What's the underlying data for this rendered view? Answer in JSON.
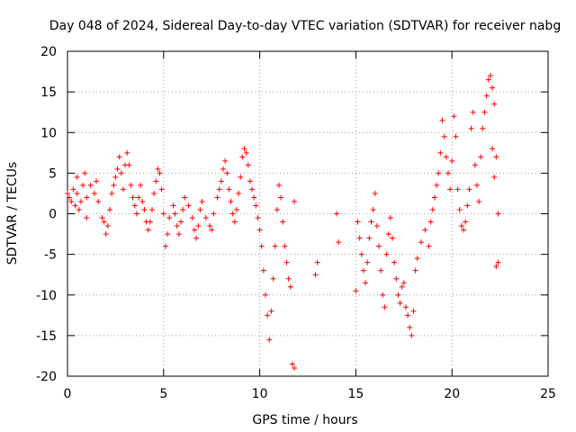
{
  "chart_data": {
    "type": "scatter",
    "title": "Day 048 of 2024, Sidereal Day-to-day VTEC variation (SDTVAR) for receiver nabg",
    "xlabel": "GPS time / hours",
    "ylabel": "SDTVAR / TECUs",
    "xlim": [
      0,
      25
    ],
    "ylim": [
      -20,
      20
    ],
    "x_ticks": [
      0,
      5,
      10,
      15,
      20,
      25
    ],
    "x_tick_labels": [
      "0",
      "5",
      "10",
      "15",
      "20",
      "25"
    ],
    "y_ticks": [
      -20,
      -15,
      -10,
      -5,
      0,
      5,
      10,
      15,
      20
    ],
    "y_tick_labels": [
      "-20",
      "-15",
      "-10",
      "-5",
      "0",
      "5",
      "10",
      "15",
      "20"
    ],
    "grid": true,
    "marker": "+",
    "series": [
      {
        "name": "SDTVAR",
        "color": "#ff0000",
        "points": [
          [
            0.0,
            2.5
          ],
          [
            0.1,
            2.0
          ],
          [
            0.2,
            1.5
          ],
          [
            0.3,
            3.0
          ],
          [
            0.4,
            1.0
          ],
          [
            0.5,
            4.5
          ],
          [
            0.5,
            2.5
          ],
          [
            0.6,
            0.5
          ],
          [
            0.7,
            1.5
          ],
          [
            0.8,
            3.5
          ],
          [
            0.9,
            5.0
          ],
          [
            1.0,
            -0.5
          ],
          [
            1.0,
            2.0
          ],
          [
            1.2,
            3.5
          ],
          [
            1.4,
            2.5
          ],
          [
            1.5,
            4.0
          ],
          [
            1.6,
            1.5
          ],
          [
            1.8,
            -0.5
          ],
          [
            1.9,
            -1.0
          ],
          [
            2.0,
            -2.5
          ],
          [
            2.1,
            -1.5
          ],
          [
            2.2,
            0.5
          ],
          [
            2.3,
            2.5
          ],
          [
            2.4,
            3.5
          ],
          [
            2.5,
            4.5
          ],
          [
            2.6,
            5.5
          ],
          [
            2.7,
            7.0
          ],
          [
            2.8,
            5.0
          ],
          [
            2.9,
            3.0
          ],
          [
            3.0,
            6.0
          ],
          [
            3.1,
            7.5
          ],
          [
            3.2,
            6.0
          ],
          [
            3.3,
            3.5
          ],
          [
            3.4,
            2.0
          ],
          [
            3.5,
            1.0
          ],
          [
            3.6,
            0.0
          ],
          [
            3.7,
            2.0
          ],
          [
            3.8,
            3.5
          ],
          [
            3.9,
            1.5
          ],
          [
            4.0,
            0.5
          ],
          [
            4.1,
            -1.0
          ],
          [
            4.2,
            -2.0
          ],
          [
            4.3,
            -1.0
          ],
          [
            4.4,
            0.5
          ],
          [
            4.5,
            2.5
          ],
          [
            4.6,
            4.0
          ],
          [
            4.7,
            5.5
          ],
          [
            4.8,
            5.0
          ],
          [
            4.9,
            3.0
          ],
          [
            5.0,
            0.0
          ],
          [
            5.1,
            -4.0
          ],
          [
            5.2,
            -2.5
          ],
          [
            5.3,
            -0.5
          ],
          [
            5.5,
            1.0
          ],
          [
            5.6,
            0.0
          ],
          [
            5.7,
            -1.5
          ],
          [
            5.8,
            -2.5
          ],
          [
            5.9,
            -1.0
          ],
          [
            6.0,
            0.5
          ],
          [
            6.1,
            2.0
          ],
          [
            6.3,
            1.0
          ],
          [
            6.5,
            -0.5
          ],
          [
            6.6,
            -2.0
          ],
          [
            6.7,
            -3.0
          ],
          [
            6.8,
            -1.5
          ],
          [
            6.9,
            0.5
          ],
          [
            7.0,
            1.5
          ],
          [
            7.2,
            -0.5
          ],
          [
            7.4,
            -1.5
          ],
          [
            7.5,
            -2.0
          ],
          [
            7.6,
            0.0
          ],
          [
            7.8,
            2.0
          ],
          [
            7.9,
            3.0
          ],
          [
            8.0,
            4.0
          ],
          [
            8.1,
            5.5
          ],
          [
            8.2,
            6.5
          ],
          [
            8.3,
            5.0
          ],
          [
            8.4,
            3.0
          ],
          [
            8.5,
            1.5
          ],
          [
            8.6,
            0.0
          ],
          [
            8.7,
            -1.0
          ],
          [
            8.8,
            0.5
          ],
          [
            8.9,
            2.5
          ],
          [
            9.0,
            4.5
          ],
          [
            9.1,
            7.0
          ],
          [
            9.2,
            8.0
          ],
          [
            9.3,
            7.5
          ],
          [
            9.4,
            6.0
          ],
          [
            9.5,
            4.0
          ],
          [
            9.6,
            3.0
          ],
          [
            9.7,
            2.0
          ],
          [
            9.8,
            1.0
          ],
          [
            9.9,
            -0.5
          ],
          [
            10.0,
            -2.0
          ],
          [
            10.1,
            -4.0
          ],
          [
            10.2,
            -7.0
          ],
          [
            10.3,
            -10.0
          ],
          [
            10.4,
            -12.5
          ],
          [
            10.5,
            -15.5
          ],
          [
            10.6,
            -12.0
          ],
          [
            10.7,
            -8.0
          ],
          [
            10.8,
            -4.0
          ],
          [
            10.9,
            0.5
          ],
          [
            11.0,
            3.5
          ],
          [
            11.1,
            2.0
          ],
          [
            11.2,
            -1.0
          ],
          [
            11.3,
            -4.0
          ],
          [
            11.4,
            -6.0
          ],
          [
            11.5,
            -8.0
          ],
          [
            11.6,
            -9.0
          ],
          [
            11.8,
            1.5
          ],
          [
            11.7,
            -18.5
          ],
          [
            11.8,
            -19.0
          ],
          [
            12.9,
            -7.5
          ],
          [
            13.0,
            -6.0
          ],
          [
            14.0,
            0.0
          ],
          [
            14.1,
            -3.5
          ],
          [
            15.0,
            -9.5
          ],
          [
            15.1,
            -1.0
          ],
          [
            15.2,
            -3.0
          ],
          [
            15.3,
            -5.0
          ],
          [
            15.4,
            -7.0
          ],
          [
            15.5,
            -8.5
          ],
          [
            15.6,
            -6.0
          ],
          [
            15.7,
            -3.0
          ],
          [
            15.8,
            -1.0
          ],
          [
            15.9,
            0.5
          ],
          [
            16.0,
            2.5
          ],
          [
            16.1,
            -1.5
          ],
          [
            16.2,
            -4.0
          ],
          [
            16.3,
            -7.0
          ],
          [
            16.4,
            -10.0
          ],
          [
            16.5,
            -11.5
          ],
          [
            16.6,
            -5.0
          ],
          [
            16.7,
            -2.5
          ],
          [
            16.8,
            -0.5
          ],
          [
            16.9,
            -3.0
          ],
          [
            17.0,
            -6.0
          ],
          [
            17.1,
            -8.0
          ],
          [
            17.2,
            -10.0
          ],
          [
            17.3,
            -11.0
          ],
          [
            17.4,
            -9.0
          ],
          [
            17.5,
            -8.5
          ],
          [
            17.6,
            -11.5
          ],
          [
            17.7,
            -12.5
          ],
          [
            17.8,
            -14.0
          ],
          [
            17.9,
            -15.0
          ],
          [
            18.0,
            -12.0
          ],
          [
            18.1,
            -7.0
          ],
          [
            18.2,
            -5.5
          ],
          [
            18.4,
            -3.5
          ],
          [
            18.6,
            -2.0
          ],
          [
            18.8,
            -4.0
          ],
          [
            18.9,
            -1.0
          ],
          [
            19.0,
            0.5
          ],
          [
            19.1,
            2.0
          ],
          [
            19.2,
            3.5
          ],
          [
            19.3,
            5.0
          ],
          [
            19.4,
            7.5
          ],
          [
            19.5,
            11.5
          ],
          [
            19.6,
            9.5
          ],
          [
            19.7,
            7.0
          ],
          [
            19.8,
            5.0
          ],
          [
            19.9,
            3.0
          ],
          [
            20.0,
            6.5
          ],
          [
            20.1,
            12.0
          ],
          [
            20.2,
            9.5
          ],
          [
            20.3,
            3.0
          ],
          [
            20.4,
            0.5
          ],
          [
            20.5,
            -1.5
          ],
          [
            20.6,
            -2.0
          ],
          [
            20.7,
            -1.0
          ],
          [
            20.8,
            1.0
          ],
          [
            20.9,
            3.0
          ],
          [
            21.0,
            10.5
          ],
          [
            21.1,
            12.5
          ],
          [
            21.2,
            6.0
          ],
          [
            21.3,
            3.5
          ],
          [
            21.4,
            1.5
          ],
          [
            21.5,
            7.0
          ],
          [
            21.6,
            10.5
          ],
          [
            21.7,
            12.5
          ],
          [
            21.8,
            14.5
          ],
          [
            21.9,
            16.5
          ],
          [
            22.0,
            17.0
          ],
          [
            22.1,
            15.5
          ],
          [
            22.2,
            13.5
          ],
          [
            22.3,
            7.0
          ],
          [
            22.4,
            0.0
          ],
          [
            22.4,
            -6.0
          ],
          [
            22.3,
            -6.5
          ],
          [
            22.2,
            4.5
          ],
          [
            22.1,
            8.0
          ]
        ]
      }
    ]
  }
}
